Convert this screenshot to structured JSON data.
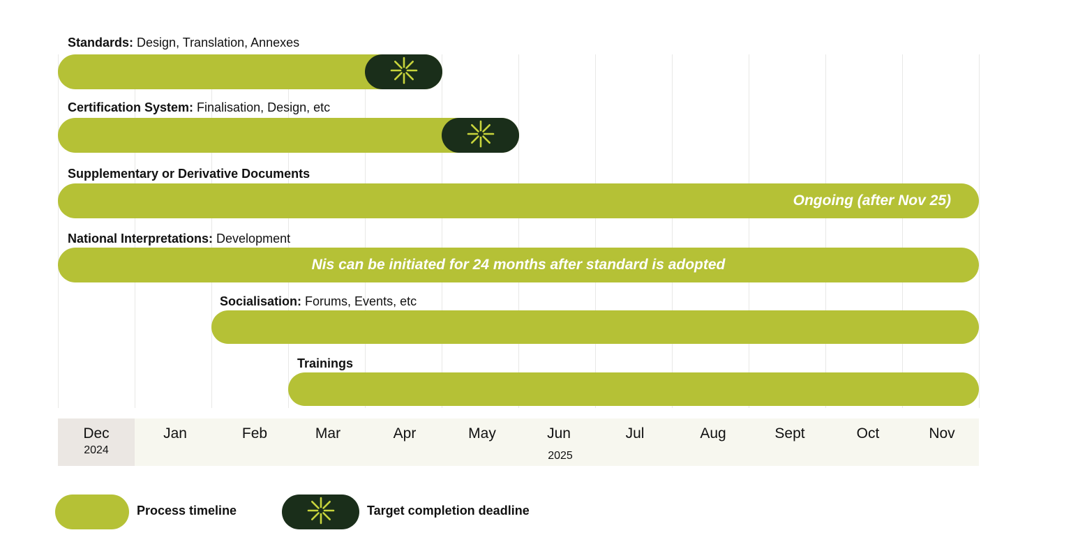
{
  "rows": [
    {
      "bold": "Standards:",
      "rest": " Design, Translation, Annexes"
    },
    {
      "bold": "Certification System:",
      "rest": " Finalisation, Design, etc"
    },
    {
      "bold": "Supplementary or Derivative Documents",
      "rest": "",
      "bar_text": "Ongoing (after Nov 25)"
    },
    {
      "bold": "National Interpretations:",
      "rest": " Development",
      "bar_text": "Nis can be initiated for 24 months after standard is adopted"
    },
    {
      "bold": "Socialisation:",
      "rest": " Forums, Events, etc"
    },
    {
      "bold": "Trainings",
      "rest": ""
    }
  ],
  "months": [
    "Dec",
    "Jan",
    "Feb",
    "Mar",
    "Apr",
    "May",
    "Jun",
    "Jul",
    "Aug",
    "Sept",
    "Oct",
    "Nov"
  ],
  "years": {
    "first": "2024",
    "second": "2025"
  },
  "legend": {
    "process": "Process timeline",
    "deadline": "Target completion deadline"
  },
  "colors": {
    "bar": "#b5c136",
    "deadline": "#1a2e1a",
    "asterisk": "#c8d43c"
  },
  "icons": {
    "deadline_marker": "asterisk-burst-icon"
  }
}
